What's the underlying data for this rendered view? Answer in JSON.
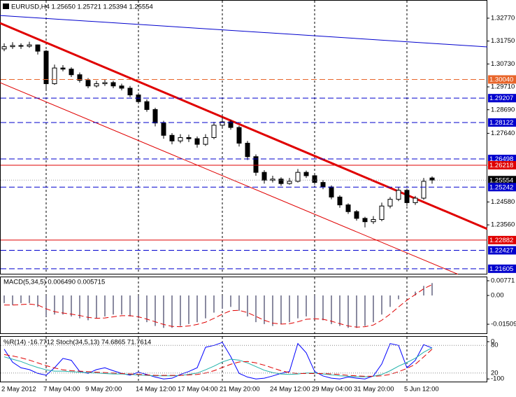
{
  "chart_data": [
    {
      "type": "candlestick",
      "title": "EURUSD,H4  1.25650 1.25721 1.25394 1.25554",
      "ylim": [
        1.2135,
        1.3358
      ],
      "yticks": [
        {
          "value": 1.3277,
          "label": "1.32770"
        },
        {
          "value": 1.3175,
          "label": "1.31750"
        },
        {
          "value": 1.3073,
          "label": "1.30730"
        },
        {
          "value": 1.2971,
          "label": "1.29710"
        },
        {
          "value": 1.2869,
          "label": "1.28690"
        },
        {
          "value": 1.2764,
          "label": "1.27640"
        },
        {
          "value": 1.2458,
          "label": "1.24580"
        },
        {
          "value": 1.2356,
          "label": "1.23560"
        }
      ],
      "levels": [
        {
          "value": 1.3004,
          "label": "1.30040",
          "color": "#e8652a",
          "style": "dashed"
        },
        {
          "value": 1.29207,
          "label": "1.29207",
          "color": "#0000cd",
          "style": "dashed"
        },
        {
          "value": 1.28122,
          "label": "1.28122",
          "color": "#0000cd",
          "style": "dashed"
        },
        {
          "value": 1.26498,
          "label": "1.26498",
          "color": "#0000cd",
          "style": "dashed"
        },
        {
          "value": 1.26218,
          "label": "1.26218",
          "color": "#e00000",
          "style": "solid"
        },
        {
          "value": 1.25554,
          "label": "1.25554",
          "color": "#000000",
          "style": "dotted"
        },
        {
          "value": 1.25242,
          "label": "1.25242",
          "color": "#0000cd",
          "style": "dashed"
        },
        {
          "value": 1.22882,
          "label": "1.22882",
          "color": "#e00000",
          "style": "solid"
        },
        {
          "value": 1.22427,
          "label": "1.22427",
          "color": "#0000cd",
          "style": "dashed"
        },
        {
          "value": 1.21605,
          "label": "1.21605",
          "color": "#0000cd",
          "style": "dashed"
        }
      ],
      "trendlines": [
        {
          "color": "#e00000",
          "width": 3,
          "start": [
            -0.5,
            1.3255
          ],
          "end": [
            57.58,
            1.2338
          ]
        },
        {
          "color": "#e00000",
          "width": 1,
          "start": [
            -0.5,
            1.299
          ],
          "end": [
            54.08,
            1.2136
          ]
        },
        {
          "color": "#0000cd",
          "width": 1,
          "start": [
            -0.5,
            1.3289
          ],
          "end": [
            57.58,
            1.3149
          ]
        }
      ],
      "candles": [
        [
          1.314,
          1.3165,
          1.313,
          1.315
        ],
        [
          1.315,
          1.317,
          1.314,
          1.3155
        ],
        [
          1.3155,
          1.3165,
          1.314,
          1.3152
        ],
        [
          1.3152,
          1.3172,
          1.3145,
          1.3158
        ],
        [
          1.3158,
          1.316,
          1.3115,
          1.313
        ],
        [
          1.313,
          1.3135,
          1.296,
          1.2985
        ],
        [
          1.2985,
          1.307,
          1.298,
          1.3055
        ],
        [
          1.3055,
          1.3068,
          1.304,
          1.305
        ],
        [
          1.305,
          1.3058,
          1.3015,
          1.3025
        ],
        [
          1.3025,
          1.3035,
          1.299,
          1.3
        ],
        [
          1.3,
          1.301,
          1.2965,
          1.2975
        ],
        [
          1.2975,
          1.2998,
          1.2968,
          1.2985
        ],
        [
          1.2985,
          1.3005,
          1.2975,
          1.299
        ],
        [
          1.299,
          1.2998,
          1.2965,
          1.2975
        ],
        [
          1.2975,
          1.2985,
          1.2955,
          1.2965
        ],
        [
          1.2965,
          1.2975,
          1.2925,
          1.2935
        ],
        [
          1.2935,
          1.2945,
          1.2895,
          1.2905
        ],
        [
          1.2905,
          1.2915,
          1.286,
          1.287
        ],
        [
          1.287,
          1.2878,
          1.2795,
          1.281
        ],
        [
          1.281,
          1.282,
          1.274,
          1.2755
        ],
        [
          1.2755,
          1.2765,
          1.2715,
          1.273
        ],
        [
          1.273,
          1.276,
          1.272,
          1.2745
        ],
        [
          1.2745,
          1.2758,
          1.2725,
          1.274
        ],
        [
          1.274,
          1.275,
          1.27,
          1.2715
        ],
        [
          1.2715,
          1.276,
          1.2708,
          1.2745
        ],
        [
          1.2745,
          1.2815,
          1.2738,
          1.28
        ],
        [
          1.28,
          1.2835,
          1.279,
          1.2815
        ],
        [
          1.2815,
          1.2825,
          1.278,
          1.279
        ],
        [
          1.279,
          1.2798,
          1.2705,
          1.272
        ],
        [
          1.272,
          1.273,
          1.2645,
          1.266
        ],
        [
          1.266,
          1.267,
          1.2575,
          1.259
        ],
        [
          1.259,
          1.26,
          1.254,
          1.2555
        ],
        [
          1.2555,
          1.2575,
          1.2545,
          1.256
        ],
        [
          1.256,
          1.2568,
          1.253,
          1.254
        ],
        [
          1.254,
          1.2565,
          1.2535,
          1.255
        ],
        [
          1.255,
          1.2605,
          1.2545,
          1.259
        ],
        [
          1.259,
          1.2598,
          1.2565,
          1.2575
        ],
        [
          1.2575,
          1.2582,
          1.2535,
          1.2545
        ],
        [
          1.2545,
          1.2555,
          1.2515,
          1.2525
        ],
        [
          1.2525,
          1.2532,
          1.247,
          1.248
        ],
        [
          1.248,
          1.2488,
          1.2432,
          1.2445
        ],
        [
          1.2445,
          1.2452,
          1.2405,
          1.2415
        ],
        [
          1.2415,
          1.2422,
          1.2375,
          1.2385
        ],
        [
          1.2385,
          1.2392,
          1.2345,
          1.237
        ],
        [
          1.237,
          1.2395,
          1.236,
          1.238
        ],
        [
          1.238,
          1.2455,
          1.2372,
          1.244
        ],
        [
          1.244,
          1.248,
          1.243,
          1.247
        ],
        [
          1.247,
          1.2525,
          1.2462,
          1.251
        ],
        [
          1.251,
          1.2518,
          1.244,
          1.2455
        ],
        [
          1.2455,
          1.2485,
          1.2445,
          1.2475
        ],
        [
          1.2475,
          1.2565,
          1.2468,
          1.255
        ],
        [
          1.2565,
          1.25721,
          1.25394,
          1.25554
        ]
      ]
    },
    {
      "type": "macd",
      "title": "MACD(5,34,5) 0.006490 0.005715",
      "ylim": [
        -0.0202,
        0.0099
      ],
      "yticks": [
        0.00771,
        {
          "value": 0,
          "label": "0.00"
        },
        -0.01509
      ],
      "series": [
        {
          "color": "#8a8aa0",
          "style": "histogram",
          "values": [
            -0.004,
            -0.005,
            -0.004,
            -0.004,
            -0.006,
            -0.011,
            -0.01,
            -0.01,
            -0.011,
            -0.012,
            -0.013,
            -0.012,
            -0.011,
            -0.01,
            -0.01,
            -0.011,
            -0.012,
            -0.014,
            -0.016,
            -0.017,
            -0.017,
            -0.016,
            -0.015,
            -0.014,
            -0.012,
            -0.009,
            -0.007,
            -0.006,
            -0.008,
            -0.011,
            -0.014,
            -0.015,
            -0.016,
            -0.015,
            -0.014,
            -0.012,
            -0.011,
            -0.012,
            -0.013,
            -0.015,
            -0.016,
            -0.017,
            -0.017,
            -0.016,
            -0.014,
            -0.01,
            -0.006,
            -0.002,
            0.001,
            0.002,
            0.005,
            0.00649
          ]
        },
        {
          "color": "#e00000",
          "style": "dashed",
          "values": [
            -0.005,
            -0.005,
            -0.0048,
            -0.0045,
            -0.005,
            -0.007,
            -0.0085,
            -0.0092,
            -0.0098,
            -0.0105,
            -0.0115,
            -0.012,
            -0.0118,
            -0.0112,
            -0.0106,
            -0.0106,
            -0.0112,
            -0.0124,
            -0.0138,
            -0.0152,
            -0.0162,
            -0.0164,
            -0.016,
            -0.0152,
            -0.014,
            -0.012,
            -0.0098,
            -0.008,
            -0.0078,
            -0.009,
            -0.011,
            -0.013,
            -0.0145,
            -0.015,
            -0.0148,
            -0.0138,
            -0.0125,
            -0.0122,
            -0.0125,
            -0.0135,
            -0.0148,
            -0.016,
            -0.0166,
            -0.0164,
            -0.0155,
            -0.013,
            -0.0098,
            -0.006,
            -0.0025,
            0.0005,
            0.0035,
            0.005715
          ]
        }
      ]
    },
    {
      "type": "line",
      "title": "%R(14) -16.7712  Stoch(34,5,13) 74.6865 71.7614",
      "categories": [
        "2 May 2012",
        null,
        null,
        null,
        null,
        "7 May 04:00",
        null,
        null,
        null,
        null,
        "9 May 20:00",
        null,
        null,
        null,
        null,
        null,
        "14 May 12:00",
        null,
        null,
        null,
        null,
        "17 May 04:00",
        null,
        null,
        null,
        null,
        "21 May 20:00",
        null,
        null,
        null,
        null,
        null,
        "24 May 12:00",
        null,
        null,
        null,
        null,
        "29 May 04:00",
        null,
        null,
        null,
        null,
        "31 May 20:00",
        null,
        null,
        null,
        null,
        null,
        "5 Jun 12:00",
        null,
        null,
        null
      ],
      "ylim": [
        0,
        100
      ],
      "yticks": [
        20,
        80
      ],
      "y2lim": [
        -109,
        15
      ],
      "y2ticks": [
        -100,
        0
      ],
      "series": [
        {
          "color": "#0000ff",
          "style": "solid",
          "axis": "y2",
          "values": [
            -20,
            -55,
            -70,
            -75,
            -85,
            -90,
            -70,
            -45,
            -50,
            -80,
            -85,
            -75,
            -70,
            -78,
            -85,
            -90,
            -82,
            -88,
            -95,
            -100,
            -98,
            -88,
            -80,
            -70,
            -15,
            -10,
            -2,
            -40,
            -85,
            -95,
            -100,
            -98,
            -92,
            -85,
            -80,
            -5,
            -30,
            -80,
            -92,
            -98,
            -100,
            -95,
            -98,
            -100,
            -92,
            -60,
            -5,
            -10,
            -70,
            -50,
            -8,
            -16.7712
          ]
        },
        {
          "color": "#20b2aa",
          "style": "solid",
          "values": [
            55,
            50,
            45,
            38,
            32,
            27,
            24,
            24,
            23,
            22,
            21,
            20,
            19,
            18,
            18,
            17,
            16,
            15,
            14,
            14,
            14,
            15,
            17,
            20,
            27,
            35,
            44,
            50,
            48,
            42,
            34,
            26,
            21,
            18,
            17,
            18,
            20,
            20,
            18,
            16,
            14,
            13,
            12,
            12,
            13,
            17,
            25,
            35,
            43,
            52,
            65,
            74.6865
          ]
        },
        {
          "color": "#e00000",
          "style": "dashed",
          "values": [
            60,
            57,
            53,
            48,
            42,
            36,
            31,
            27,
            25,
            24,
            23,
            22,
            21,
            20,
            19,
            18,
            17,
            16,
            15,
            15,
            15,
            15,
            16,
            17,
            20,
            25,
            32,
            39,
            44,
            45,
            42,
            37,
            31,
            25,
            21,
            19,
            19,
            19,
            19,
            18,
            17,
            15,
            14,
            13,
            13,
            14,
            17,
            23,
            30,
            39,
            55,
            71.7614
          ]
        }
      ]
    }
  ]
}
